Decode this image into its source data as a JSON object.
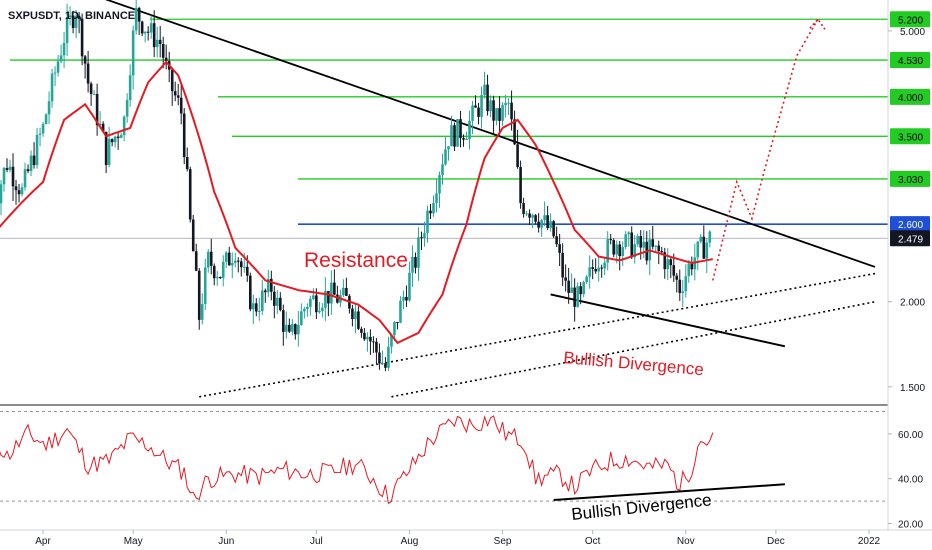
{
  "symbol_title": "SXPUSDT, 1D, BINANCE",
  "colors": {
    "up": "#26a69a",
    "down": "#131722",
    "ma": "#e31b23",
    "level": "#22cc22",
    "resistance_line": "#1e4fd8",
    "trend": "#000000",
    "rsi": "#e31b23",
    "annotation": "#e31b23"
  },
  "chart_data": [
    {
      "type": "candlestick",
      "title": "SXPUSDT, 1D, BINANCE",
      "y_scale": "log",
      "ylim": [
        1.42,
        5.55
      ],
      "y_ticks": [
        "5.000",
        "2.000",
        "1.500"
      ],
      "x_labels": [
        "Apr",
        "May",
        "Jun",
        "Jul",
        "Aug",
        "Sep",
        "Oct",
        "Nov",
        "Dec",
        "2022"
      ],
      "horizontal_levels": [
        {
          "label": "5.200",
          "value": 5.2
        },
        {
          "label": "4.530",
          "value": 4.53
        },
        {
          "label": "4.000",
          "value": 4.0
        },
        {
          "label": "3.500",
          "value": 3.5
        },
        {
          "label": "3.030",
          "value": 3.03
        }
      ],
      "resistance_level": {
        "label": "2.600",
        "value": 2.6
      },
      "last_price": {
        "label": "2.479",
        "value": 2.479
      },
      "annotations": [
        "Resistance",
        "Bullish Divergence"
      ],
      "price_path_keypoints": [
        [
          "2021-03-15",
          2.7
        ],
        [
          "2021-03-20",
          3.2
        ],
        [
          "2021-03-25",
          2.9
        ],
        [
          "2021-04-01",
          3.6
        ],
        [
          "2021-04-08",
          4.9
        ],
        [
          "2021-04-12",
          5.4
        ],
        [
          "2021-04-16",
          4.2
        ],
        [
          "2021-04-22",
          3.3
        ],
        [
          "2021-04-28",
          3.7
        ],
        [
          "2021-05-02",
          5.3
        ],
        [
          "2021-05-06",
          5.0
        ],
        [
          "2021-05-10",
          4.8
        ],
        [
          "2021-05-13",
          4.2
        ],
        [
          "2021-05-17",
          3.8
        ],
        [
          "2021-05-20",
          2.6
        ],
        [
          "2021-05-23",
          1.9
        ],
        [
          "2021-05-26",
          2.3
        ],
        [
          "2021-05-30",
          2.2
        ],
        [
          "2021-06-04",
          2.4
        ],
        [
          "2021-06-10",
          1.95
        ],
        [
          "2021-06-16",
          2.1
        ],
        [
          "2021-06-22",
          1.75
        ],
        [
          "2021-06-28",
          2.0
        ],
        [
          "2021-07-05",
          2.05
        ],
        [
          "2021-07-12",
          2.0
        ],
        [
          "2021-07-20",
          1.72
        ],
        [
          "2021-07-24",
          1.6
        ],
        [
          "2021-07-28",
          1.9
        ],
        [
          "2021-08-03",
          2.3
        ],
        [
          "2021-08-09",
          2.9
        ],
        [
          "2021-08-14",
          3.5
        ],
        [
          "2021-08-20",
          3.6
        ],
        [
          "2021-08-26",
          4.0
        ],
        [
          "2021-08-30",
          3.7
        ],
        [
          "2021-09-03",
          3.9
        ],
        [
          "2021-09-07",
          2.8
        ],
        [
          "2021-09-12",
          2.7
        ],
        [
          "2021-09-18",
          2.5
        ],
        [
          "2021-09-22",
          2.1
        ],
        [
          "2021-09-27",
          2.0
        ],
        [
          "2021-10-02",
          2.3
        ],
        [
          "2021-10-09",
          2.45
        ],
        [
          "2021-10-17",
          2.4
        ],
        [
          "2021-10-24",
          2.35
        ],
        [
          "2021-10-30",
          2.1
        ],
        [
          "2021-11-03",
          2.3
        ],
        [
          "2021-11-09",
          2.479
        ]
      ],
      "ma_keypoints": [
        [
          "2021-03-15",
          2.5
        ],
        [
          "2021-03-25",
          2.8
        ],
        [
          "2021-04-01",
          3.0
        ],
        [
          "2021-04-08",
          3.7
        ],
        [
          "2021-04-15",
          3.9
        ],
        [
          "2021-04-22",
          3.5
        ],
        [
          "2021-04-30",
          3.6
        ],
        [
          "2021-05-06",
          4.2
        ],
        [
          "2021-05-12",
          4.5
        ],
        [
          "2021-05-16",
          4.3
        ],
        [
          "2021-05-22",
          3.6
        ],
        [
          "2021-05-28",
          2.9
        ],
        [
          "2021-06-04",
          2.4
        ],
        [
          "2021-06-14",
          2.15
        ],
        [
          "2021-06-25",
          2.08
        ],
        [
          "2021-07-05",
          2.05
        ],
        [
          "2021-07-15",
          1.98
        ],
        [
          "2021-07-22",
          1.88
        ],
        [
          "2021-07-28",
          1.74
        ],
        [
          "2021-08-04",
          1.8
        ],
        [
          "2021-08-12",
          2.05
        ],
        [
          "2021-08-20",
          2.6
        ],
        [
          "2021-08-26",
          3.25
        ],
        [
          "2021-09-01",
          3.6
        ],
        [
          "2021-09-06",
          3.7
        ],
        [
          "2021-09-12",
          3.4
        ],
        [
          "2021-09-18",
          3.0
        ],
        [
          "2021-09-25",
          2.55
        ],
        [
          "2021-10-03",
          2.33
        ],
        [
          "2021-10-10",
          2.3
        ],
        [
          "2021-10-20",
          2.38
        ],
        [
          "2021-10-28",
          2.32
        ],
        [
          "2021-11-03",
          2.28
        ],
        [
          "2021-11-10",
          2.31
        ]
      ],
      "projection_keypoints": [
        [
          "2021-11-10",
          2.15
        ],
        [
          "2021-11-18",
          3.0
        ],
        [
          "2021-11-23",
          2.65
        ],
        [
          "2021-11-27",
          3.1
        ],
        [
          "2021-12-08",
          4.6
        ],
        [
          "2021-12-15",
          5.2
        ]
      ],
      "descending_trendline": [
        [
          "2021-04-20",
          5.6
        ],
        [
          "2022-01-03",
          2.25
        ]
      ],
      "rising_trendline_upper": [
        [
          "2021-05-23",
          1.45
        ],
        [
          "2022-01-03",
          2.2
        ]
      ],
      "rising_trendline_lower": [
        [
          "2021-07-26",
          1.45
        ],
        [
          "2022-01-03",
          2.0
        ]
      ],
      "price_divergence_line": [
        [
          "2021-09-17",
          2.05
        ],
        [
          "2021-12-04",
          1.72
        ]
      ]
    },
    {
      "type": "line",
      "series": [
        {
          "name": "",
          "values_keypoints": [
            [
              "2021-03-15",
              60
            ],
            [
              "2021-03-20",
              50
            ],
            [
              "2021-03-27",
              60
            ],
            [
              "2021-04-02",
              55
            ],
            [
              "2021-04-09",
              62
            ],
            [
              "2021-04-16",
              46
            ],
            [
              "2021-04-23",
              48
            ],
            [
              "2021-04-30",
              58
            ],
            [
              "2021-05-06",
              55
            ],
            [
              "2021-05-12",
              48
            ],
            [
              "2021-05-18",
              43
            ],
            [
              "2021-05-21",
              31
            ],
            [
              "2021-05-26",
              40
            ],
            [
              "2021-06-04",
              42
            ],
            [
              "2021-06-12",
              41
            ],
            [
              "2021-06-20",
              44
            ],
            [
              "2021-06-28",
              42
            ],
            [
              "2021-07-06",
              43
            ],
            [
              "2021-07-14",
              47
            ],
            [
              "2021-07-20",
              40
            ],
            [
              "2021-07-25",
              32
            ],
            [
              "2021-08-01",
              44
            ],
            [
              "2021-08-08",
              57
            ],
            [
              "2021-08-16",
              66
            ],
            [
              "2021-08-22",
              64
            ],
            [
              "2021-08-28",
              67
            ],
            [
              "2021-09-02",
              60
            ],
            [
              "2021-09-08",
              57
            ],
            [
              "2021-09-12",
              40
            ],
            [
              "2021-09-20",
              42
            ],
            [
              "2021-09-25",
              36
            ],
            [
              "2021-09-30",
              43
            ],
            [
              "2021-10-07",
              48
            ],
            [
              "2021-10-13",
              49
            ],
            [
              "2021-10-20",
              45
            ],
            [
              "2021-10-26",
              46
            ],
            [
              "2021-10-30",
              37
            ],
            [
              "2021-11-03",
              45
            ],
            [
              "2021-11-05",
              57
            ],
            [
              "2021-11-10",
              57
            ]
          ]
        }
      ],
      "ylim": [
        18,
        72
      ],
      "y_ticks": [
        "60.00",
        "40.00",
        "20.00"
      ],
      "reference_levels": [
        70,
        30
      ],
      "divergence_line": [
        [
          "2021-09-18",
          30.5
        ],
        [
          "2021-12-04",
          37.5
        ]
      ],
      "annotations": [
        "Bullish Divergence"
      ]
    }
  ]
}
